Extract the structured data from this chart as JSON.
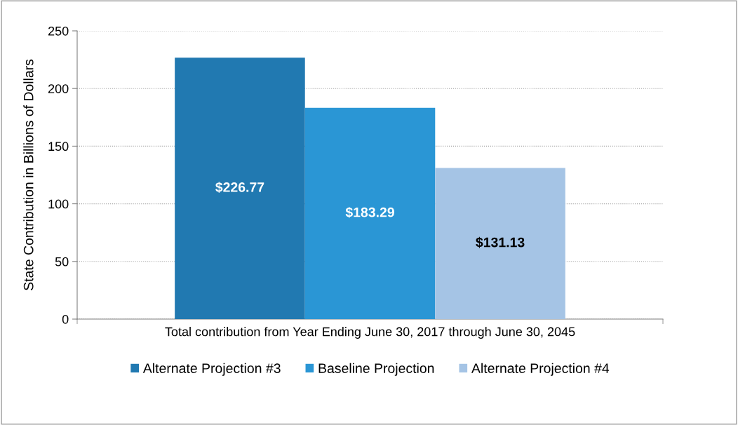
{
  "chart_data": {
    "type": "bar",
    "categories": [
      "Total contribution from Year Ending June 30, 2017 through June 30, 2045"
    ],
    "ylabel": "State Contribution in Billions of Dollars",
    "series": [
      {
        "name": "Alternate Projection #3",
        "color": "#2179b1",
        "values": [
          226.77
        ],
        "value_labels": [
          "$226.77"
        ]
      },
      {
        "name": "Baseline Projection",
        "color": "#2a96d5",
        "values": [
          183.29
        ],
        "value_labels": [
          "$183.29"
        ]
      },
      {
        "name": "Alternate Projection #4",
        "color": "#a5c4e5",
        "values": [
          131.13
        ],
        "value_labels": [
          "$131.13"
        ]
      }
    ],
    "ylim": [
      0,
      250
    ],
    "yticks": [
      0,
      50,
      100,
      150,
      200,
      250
    ],
    "grid": "y",
    "legend": "bottom"
  }
}
